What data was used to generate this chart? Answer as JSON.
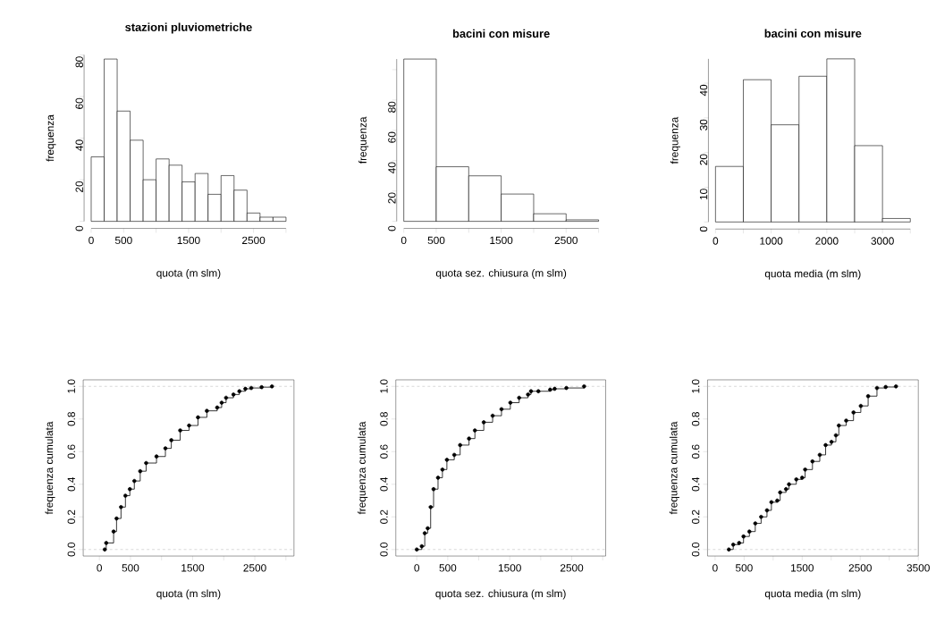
{
  "chart_data": [
    {
      "type": "histogram",
      "title": "stazioni pluviometriche",
      "xlabel": "quota (m slm)",
      "ylabel": "frequenza",
      "color": "#ffffff",
      "bins": [
        0,
        200,
        400,
        600,
        800,
        1000,
        1200,
        1400,
        1600,
        1800,
        2000,
        2200,
        2400,
        2600,
        2800,
        3000
      ],
      "values": [
        31,
        78,
        53,
        39,
        20,
        30,
        27,
        19,
        23,
        13,
        22,
        15,
        4,
        2,
        2
      ],
      "xlim": [
        0,
        3000
      ],
      "ylim": [
        0,
        80
      ],
      "xticks": [
        0,
        500,
        {
          "value": 1000,
          "label": null
        },
        1500,
        {
          "value": 2000,
          "label": null
        },
        2500,
        {
          "value": 3000,
          "label": null
        }
      ],
      "yticks": [
        0,
        20,
        40,
        60,
        80
      ]
    },
    {
      "type": "histogram",
      "title": "bacini con misure",
      "xlabel": "quota sez. chiusura (m slm)",
      "ylabel": "frequenza",
      "color": "#ffffff",
      "bins": [
        0,
        500,
        1000,
        1500,
        2000,
        2500,
        3000
      ],
      "values": [
        107,
        36,
        30,
        18,
        5,
        1
      ],
      "xlim": [
        0,
        3000
      ],
      "ylim": [
        0,
        107
      ],
      "xticks": [
        0,
        500,
        {
          "value": 1000,
          "label": null
        },
        1500,
        {
          "value": 2000,
          "label": null
        },
        2500,
        {
          "value": 3000,
          "label": null
        }
      ],
      "yticks": [
        0,
        20,
        40,
        60,
        80,
        {
          "value": 100,
          "label": null
        }
      ]
    },
    {
      "type": "histogram",
      "title": "bacini con misure",
      "xlabel": "quota media (m slm)",
      "ylabel": "frequenza",
      "color": "#ffffff",
      "bins": [
        0,
        500,
        1000,
        1500,
        2000,
        2500,
        3000,
        3500
      ],
      "values": [
        16,
        41,
        28,
        42,
        47,
        22,
        1
      ],
      "xlim": [
        0,
        3500
      ],
      "ylim": [
        0,
        47
      ],
      "xticks": [
        0,
        {
          "value": 500,
          "label": null
        },
        1000,
        {
          "value": 1500,
          "label": null
        },
        2000,
        {
          "value": 2500,
          "label": null
        },
        3000,
        {
          "value": 3500,
          "label": null
        }
      ],
      "yticks": [
        0,
        10,
        20,
        30,
        40
      ]
    },
    {
      "type": "step",
      "xlabel": "quota (m slm)",
      "ylabel": "frequenza cumulata",
      "color": "#000000",
      "marker": "circle",
      "line_style": "solid",
      "x": [
        86,
        110,
        229,
        276,
        348,
        419,
        490,
        562,
        657,
        752,
        919,
        1062,
        1157,
        1300,
        1443,
        1586,
        1729,
        1895,
        1967,
        2038,
        2157,
        2252,
        2348,
        2443,
        2610,
        2776
      ],
      "values": [
        0,
        0.04,
        0.11,
        0.19,
        0.26,
        0.33,
        0.37,
        0.42,
        0.48,
        0.53,
        0.57,
        0.62,
        0.67,
        0.73,
        0.76,
        0.81,
        0.85,
        0.87,
        0.9,
        0.93,
        0.95,
        0.97,
        0.985,
        0.99,
        0.995,
        1.0
      ],
      "xlim": [
        -260,
        3130
      ],
      "ylim": [
        -0.04,
        1.04
      ],
      "xticks": [
        0,
        500,
        {
          "value": 1000,
          "label": null
        },
        1500,
        {
          "value": 2000,
          "label": null
        },
        2500,
        {
          "value": 3000,
          "label": null
        }
      ],
      "yticks": [
        {
          "value": 0,
          "label": "0.0"
        },
        0.2,
        0.4,
        0.6,
        0.8,
        {
          "value": 1,
          "label": "1.0"
        }
      ],
      "ref_lines": [
        {
          "axis": "y",
          "value": 0,
          "color": "#bebebe",
          "line_style": "dashed"
        },
        {
          "axis": "y",
          "value": 1,
          "color": "#bebebe",
          "line_style": "dashed"
        }
      ]
    },
    {
      "type": "step",
      "xlabel": "quota sez. chiusura (m slm)",
      "ylabel": "frequenza cumulata",
      "color": "#000000",
      "marker": "circle",
      "line_style": "solid",
      "x": [
        0,
        81,
        129,
        176,
        224,
        271,
        343,
        414,
        486,
        605,
        700,
        843,
        938,
        1081,
        1224,
        1367,
        1510,
        1652,
        1795,
        1843,
        1962,
        2152,
        2224,
        2414,
        2700
      ],
      "values": [
        0,
        0.02,
        0.1,
        0.13,
        0.26,
        0.37,
        0.44,
        0.49,
        0.55,
        0.58,
        0.64,
        0.68,
        0.73,
        0.78,
        0.82,
        0.86,
        0.9,
        0.93,
        0.95,
        0.97,
        0.97,
        0.98,
        0.985,
        0.99,
        1.0
      ],
      "xlim": [
        -338,
        3048
      ],
      "ylim": [
        -0.04,
        1.04
      ],
      "xticks": [
        0,
        500,
        {
          "value": 1000,
          "label": null
        },
        1500,
        {
          "value": 2000,
          "label": null
        },
        2500,
        {
          "value": 3000,
          "label": null
        }
      ],
      "yticks": [
        {
          "value": 0,
          "label": "0.0"
        },
        0.2,
        0.4,
        0.6,
        0.8,
        {
          "value": 1,
          "label": "1.0"
        }
      ],
      "ref_lines": [
        {
          "axis": "y",
          "value": 0,
          "color": "#bebebe",
          "line_style": "dashed"
        },
        {
          "axis": "y",
          "value": 1,
          "color": "#bebebe",
          "line_style": "dashed"
        }
      ]
    },
    {
      "type": "step",
      "xlabel": "quota media (m slm)",
      "ylabel": "frequenza cumulata",
      "color": "#000000",
      "marker": "circle",
      "line_style": "solid",
      "x": [
        237,
        313,
        414,
        490,
        591,
        692,
        793,
        894,
        970,
        1071,
        1121,
        1222,
        1273,
        1399,
        1500,
        1551,
        1677,
        1803,
        1904,
        2005,
        2081,
        2131,
        2258,
        2384,
        2510,
        2636,
        2788,
        2939,
        3116
      ],
      "values": [
        0,
        0.03,
        0.04,
        0.08,
        0.11,
        0.16,
        0.2,
        0.24,
        0.29,
        0.3,
        0.35,
        0.37,
        0.4,
        0.43,
        0.44,
        0.49,
        0.54,
        0.58,
        0.64,
        0.66,
        0.7,
        0.76,
        0.79,
        0.84,
        0.88,
        0.94,
        0.99,
        0.996,
        1.0
      ],
      "xlim": [
        -130,
        3500
      ],
      "ylim": [
        -0.04,
        1.04
      ],
      "xticks": [
        0,
        500,
        {
          "value": 1000,
          "label": null
        },
        1500,
        {
          "value": 2000,
          "label": null
        },
        2500,
        {
          "value": 3000,
          "label": null
        },
        3500
      ],
      "yticks": [
        {
          "value": 0,
          "label": "0.0"
        },
        0.2,
        0.4,
        0.6,
        0.8,
        {
          "value": 1,
          "label": "1.0"
        }
      ],
      "ref_lines": [
        {
          "axis": "y",
          "value": 0,
          "color": "#bebebe",
          "line_style": "dashed"
        },
        {
          "axis": "y",
          "value": 1,
          "color": "#bebebe",
          "line_style": "dashed"
        }
      ]
    }
  ]
}
